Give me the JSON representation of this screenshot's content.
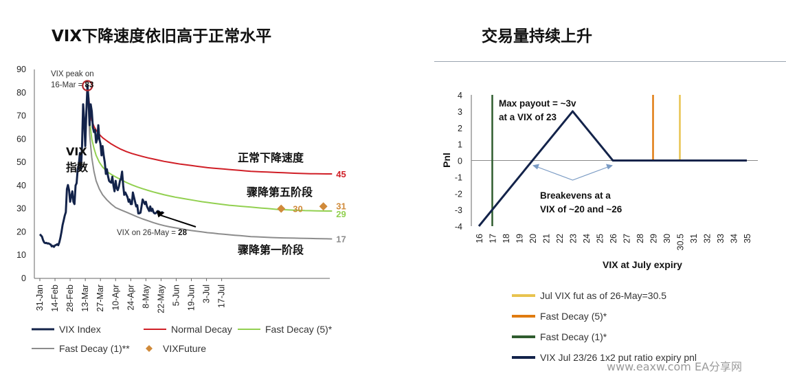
{
  "left_title": "VIX下降速度依旧高于正常水平",
  "right_title": "交易量持续上升",
  "watermark": "www.eaxw.com  EA分享网",
  "chart_data": [
    {
      "type": "line",
      "yticks": [
        0,
        10,
        20,
        30,
        40,
        50,
        60,
        70,
        80,
        90
      ],
      "ylim": [
        0,
        90
      ],
      "x_ticks": [
        "31-Jan",
        "14-Feb",
        "28-Feb",
        "13-Mar",
        "27-Mar",
        "10-Apr",
        "24-Apr",
        "8-May",
        "22-May",
        "5-Jun",
        "19-Jun",
        "3-Jul",
        "17-Jul"
      ],
      "series": [
        {
          "name": "VIX Index",
          "color": "#13234a",
          "x": [
            0,
            1,
            2,
            3,
            4,
            5,
            6,
            7,
            8,
            9,
            10,
            11,
            12,
            13,
            14,
            15,
            16,
            17,
            18,
            19,
            20,
            21,
            22,
            23,
            24,
            25,
            26,
            27,
            28,
            29,
            30,
            31,
            32,
            33,
            34,
            35,
            36,
            37,
            38,
            39,
            40,
            41,
            42,
            43,
            44,
            45,
            46,
            47,
            48,
            49,
            50,
            51,
            52,
            53,
            54,
            55,
            56,
            57,
            58,
            59,
            60,
            61,
            62,
            63,
            64,
            65,
            66,
            67,
            68,
            69,
            70,
            71,
            72,
            73,
            74,
            75,
            76,
            77,
            78,
            79,
            80,
            81,
            82,
            83,
            84,
            85,
            86,
            87,
            88,
            89,
            90,
            91,
            92,
            93,
            94,
            95,
            96,
            97,
            98,
            99,
            100,
            101,
            102,
            103,
            104,
            105,
            106,
            107,
            108,
            109,
            110,
            111,
            112,
            113,
            114
          ],
          "y": [
            19,
            18.5,
            18,
            16.5,
            15.5,
            15.2,
            15.3,
            15,
            15.1,
            14.8,
            14.6,
            13.8,
            14.0,
            13.6,
            14.2,
            14.4,
            14.7,
            14.3,
            15.5,
            17.5,
            20,
            23,
            25,
            27,
            28.5,
            38.5,
            40.2,
            38,
            33,
            35.5,
            37.5,
            33,
            32,
            40,
            41,
            47,
            49,
            54,
            47,
            57,
            75,
            68,
            57,
            72,
            83,
            77,
            66,
            75,
            72,
            65,
            63,
            64,
            58.5,
            60,
            66,
            60,
            58,
            53,
            57,
            53,
            50,
            45,
            47,
            44,
            42,
            41.5,
            41.2,
            43.8,
            40,
            37.5,
            42,
            39,
            38,
            39.5,
            42,
            43,
            46,
            40,
            36,
            37,
            36,
            35,
            33,
            34,
            32,
            32,
            37,
            35,
            33,
            31,
            31.5,
            28,
            28,
            28.3,
            31,
            34,
            33,
            32,
            33,
            31,
            30,
            29,
            31,
            29,
            30,
            28.5,
            28,
            28,
            28.5,
            29,
            28.8,
            28.1,
            28.3,
            28.5,
            28.2
          ]
        },
        {
          "name": "Normal Decay",
          "color": "#d01e26",
          "x": [
            44,
            46,
            48,
            50,
            52,
            55,
            58,
            62,
            66,
            70,
            75,
            80,
            85,
            90,
            95,
            100,
            105,
            110,
            115,
            120,
            125,
            130,
            135,
            140,
            145,
            150,
            155,
            160,
            165,
            170,
            175,
            180,
            185,
            190,
            195,
            200,
            205,
            210,
            215,
            220,
            225,
            230,
            235,
            240,
            245,
            250,
            255,
            260,
            265,
            270
          ],
          "y": [
            83,
            74,
            68,
            65.5,
            63.8,
            62,
            60.6,
            59.2,
            57.9,
            56.8,
            55.6,
            54.6,
            53.8,
            53.1,
            52.5,
            51.9,
            51.4,
            50.9,
            50.4,
            50,
            49.6,
            49.2,
            48.9,
            48.6,
            48.3,
            48,
            47.7,
            47.5,
            47.3,
            47.1,
            46.9,
            46.7,
            46.5,
            46.3,
            46.1,
            46,
            45.9,
            45.8,
            45.7,
            45.6,
            45.5,
            45.4,
            45.3,
            45.2,
            45.15,
            45.1,
            45.05,
            45.02,
            45.01,
            45
          ]
        },
        {
          "name": "Fast Decay (5)*",
          "color": "#92d050",
          "x": [
            44,
            46,
            48,
            50,
            52,
            55,
            58,
            62,
            66,
            70,
            75,
            80,
            85,
            90,
            95,
            100,
            105,
            110,
            115,
            120,
            125,
            130,
            135,
            140,
            145,
            150,
            155,
            160,
            165,
            170,
            175,
            180,
            185,
            190,
            195,
            200,
            205,
            210,
            215,
            220,
            225,
            230,
            235,
            240,
            245,
            250,
            255,
            260,
            265,
            270
          ],
          "y": [
            83,
            68,
            60,
            56,
            53,
            50,
            48,
            46,
            44.8,
            43.7,
            42.5,
            41.3,
            40.3,
            39.4,
            38.6,
            37.9,
            37.2,
            36.6,
            36,
            35.5,
            35,
            34.6,
            34.2,
            33.8,
            33.4,
            33,
            32.7,
            32.4,
            32.1,
            31.8,
            31.5,
            31.3,
            31.1,
            30.9,
            30.7,
            30.5,
            30.3,
            30.1,
            29.9,
            29.7,
            29.6,
            29.5,
            29.4,
            29.3,
            29.2,
            29.15,
            29.1,
            29.05,
            29.02,
            29
          ]
        },
        {
          "name": "Fast Decay (1)**",
          "color": "#8c8c8c",
          "x": [
            44,
            46,
            48,
            50,
            52,
            55,
            58,
            62,
            66,
            70,
            75,
            80,
            85,
            90,
            95,
            100,
            105,
            110,
            115,
            120,
            125,
            130,
            135,
            140,
            145,
            150,
            155,
            160,
            165,
            170,
            175,
            180,
            185,
            190,
            195,
            200,
            205,
            210,
            215,
            220,
            225,
            230,
            235,
            240,
            245,
            250,
            255,
            260,
            265,
            270
          ],
          "y": [
            83,
            62,
            52,
            46,
            42,
            38.5,
            36,
            33.8,
            32,
            30.5,
            29.5,
            28.5,
            27.5,
            26.5,
            25.6,
            24.8,
            24,
            23.3,
            22.7,
            22.2,
            21.8,
            21.4,
            21,
            20.6,
            20.3,
            20,
            19.7,
            19.5,
            19.2,
            19,
            18.8,
            18.6,
            18.4,
            18.2,
            18,
            17.9,
            17.8,
            17.7,
            17.6,
            17.5,
            17.45,
            17.4,
            17.35,
            17.3,
            17.25,
            17.2,
            17.15,
            17.1,
            17.05,
            17
          ]
        },
        {
          "name": "VIXFuture",
          "color": "#d08a3a",
          "x": [
            223,
            262
          ],
          "y": [
            30,
            31
          ]
        }
      ],
      "peak_annotation": {
        "line1": "VIX peak on",
        "line2": "16-Mar = ",
        "value": "83"
      },
      "current_annotation": {
        "label": "VIX on 26-May = ",
        "value": "28"
      },
      "cn_labels": {
        "vix_l1": "VIX",
        "vix_l2": "指数",
        "normal": "正常下降速度",
        "fast5": "骤降第五阶段",
        "fast1": "骤降第一阶段"
      },
      "end_labels": {
        "normal": "45",
        "fast5": "29",
        "fast1": "17",
        "future1": "30",
        "future2": "31"
      }
    },
    {
      "type": "line",
      "ylabel": "Pnl",
      "xlabel": "VIX at July expiry",
      "yticks": [
        -4,
        -3,
        -2,
        -1,
        0,
        1,
        2,
        3,
        4
      ],
      "ylim": [
        -4,
        4
      ],
      "x_ticks": [
        "16",
        "17",
        "18",
        "19",
        "20",
        "21",
        "22",
        "23",
        "24",
        "25",
        "26",
        "27",
        "28",
        "29",
        "30",
        "30.5",
        "31",
        "32",
        "33",
        "34",
        "35"
      ],
      "series": [
        {
          "name": "VIX Jul 23/26 1x2 put ratio expiry pnl",
          "color": "#13234a",
          "x": [
            16,
            23,
            26,
            35
          ],
          "y": [
            -4,
            3,
            0,
            0
          ]
        },
        {
          "name": "Jul VIX fut as of 26-May=30.5",
          "color": "#e8c34f",
          "x": [
            30.5,
            30.5
          ],
          "y": [
            0,
            4
          ]
        },
        {
          "name": "Fast Decay (5)*",
          "color": "#e07b10",
          "x": [
            29,
            29
          ],
          "y": [
            0,
            4
          ]
        },
        {
          "name": "Fast Decay (1)*",
          "color": "#2f5c2e",
          "x": [
            17,
            17
          ],
          "y": [
            -4,
            4
          ]
        }
      ],
      "annotations": {
        "max_payout_l1": "Max payout = ~3v",
        "max_payout_l2": "at a VIX of 23",
        "breakeven_l1": "Breakevens at a",
        "breakeven_l2": "VIX of ~20 and ~26"
      }
    }
  ]
}
